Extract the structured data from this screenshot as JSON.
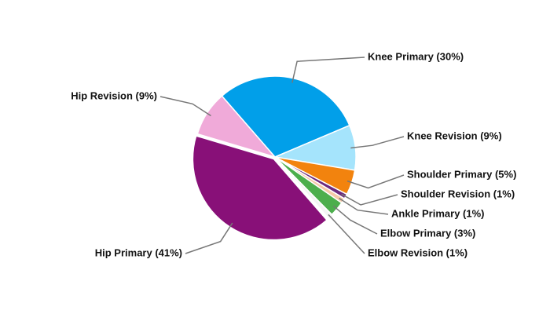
{
  "chart_data": {
    "type": "pie",
    "categories": [
      "Knee Primary (30%)",
      "Knee Revision (9%)",
      "Shoulder Primary (5%)",
      "Shoulder Revision (1%)",
      "Ankle Primary (1%)",
      "Elbow Primary (3%)",
      "Elbow Revision (1%)",
      "Hip Primary (41%)",
      "Hip Revision (9%)"
    ],
    "values": [
      30,
      9,
      5,
      1,
      1,
      3,
      1,
      41,
      9
    ],
    "colors": [
      "#019fe9",
      "#a5e4fc",
      "#f2830e",
      "#6d2a7e",
      "#f5c9a8",
      "#4cae4c",
      "#f4f4f4",
      "#881078",
      "#f0aad9"
    ]
  }
}
